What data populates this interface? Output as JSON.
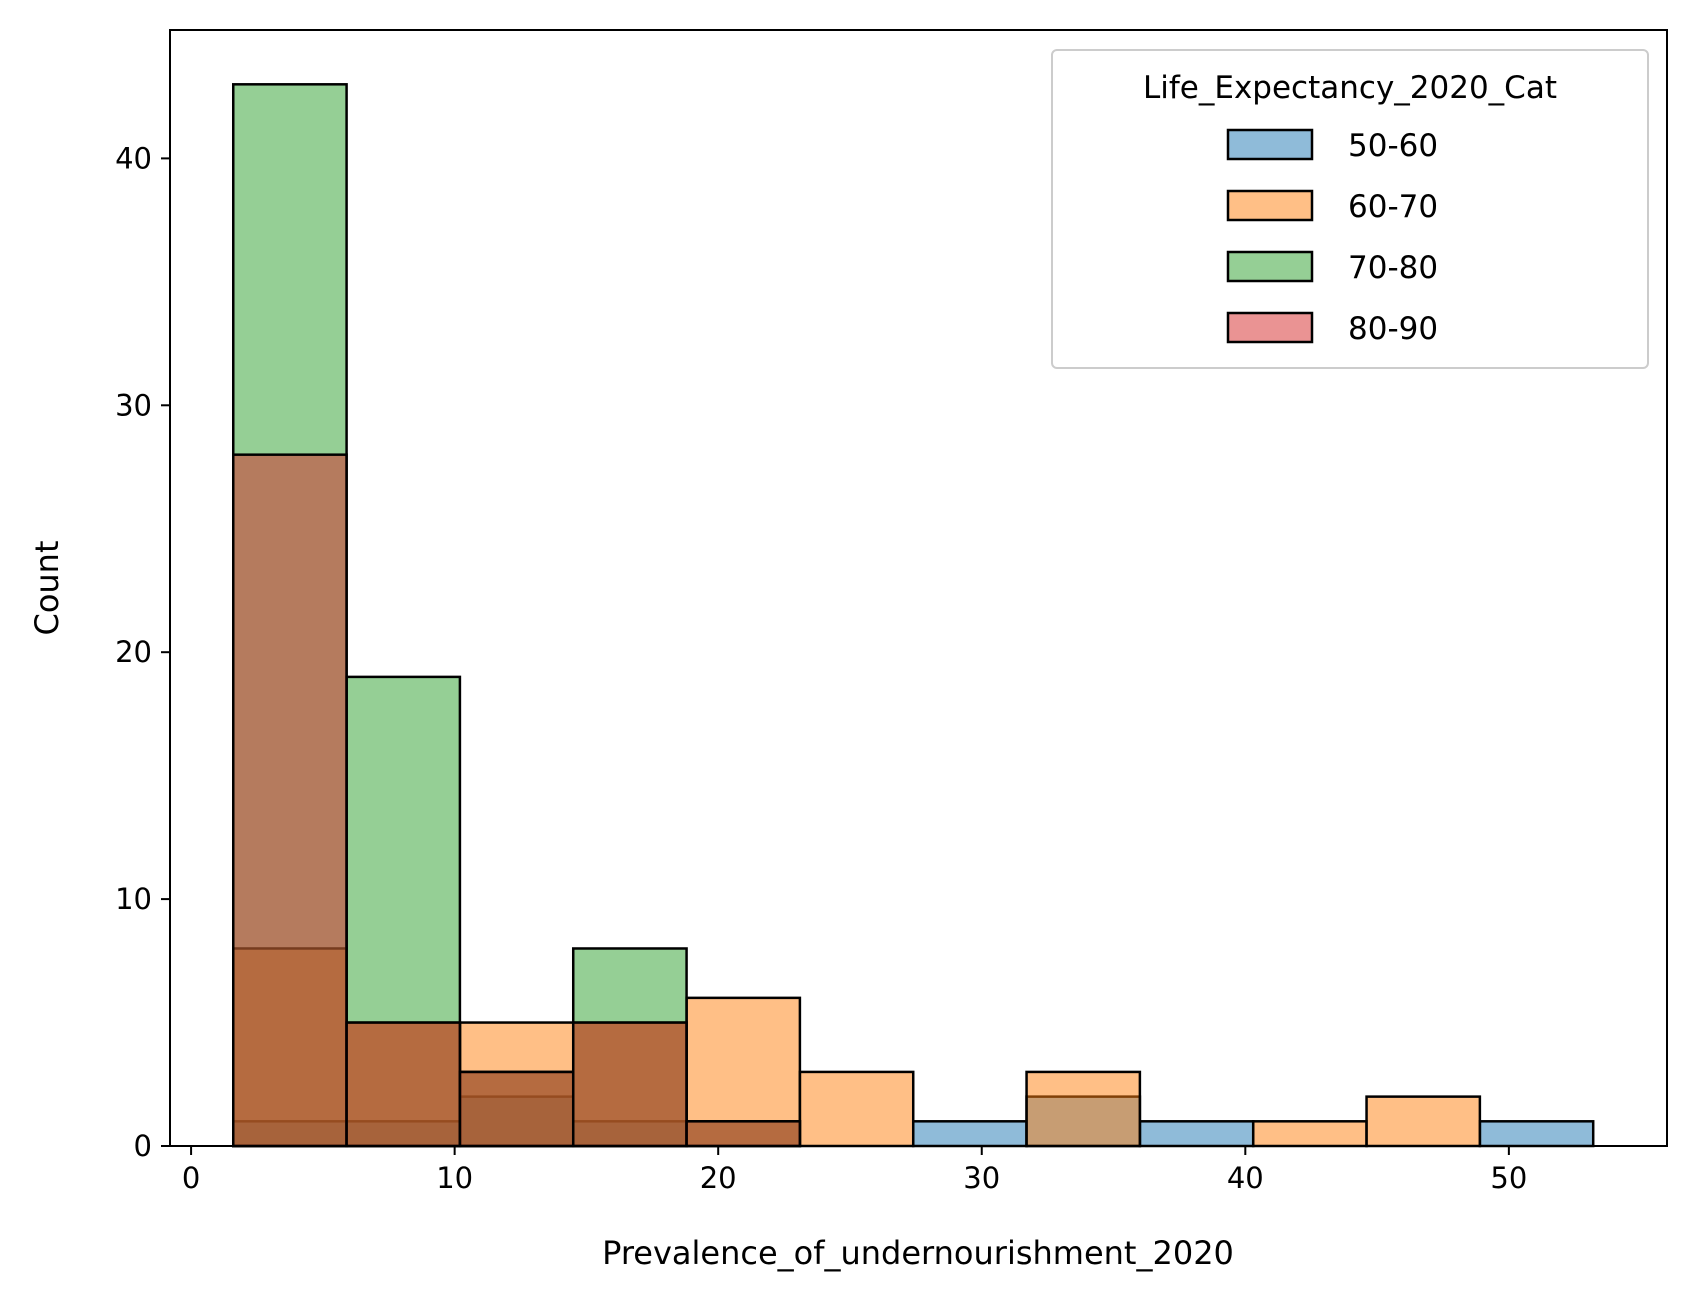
{
  "chart_data": {
    "type": "bar",
    "subtype": "overlapping-histogram",
    "title": "",
    "xlabel": "Prevalence_of_undernourishment_2020",
    "ylabel": "Count",
    "xlim": [
      -0.8,
      56.0
    ],
    "ylim": [
      0,
      45.2
    ],
    "xticks": [
      0,
      10,
      20,
      30,
      40,
      50
    ],
    "yticks": [
      0,
      10,
      20,
      30,
      40
    ],
    "grid": false,
    "legend": {
      "title": "Life_Expectancy_2020_Cat",
      "position": "top-right"
    },
    "bin_edges": [
      1.6,
      5.9,
      10.2,
      14.5,
      18.8,
      23.1,
      27.4,
      31.7,
      36.0,
      40.3,
      44.6,
      48.9,
      53.2
    ],
    "series": [
      {
        "name": "50-60",
        "color": "#1f77b4",
        "values": [
          1,
          1,
          2,
          1,
          0,
          0,
          1,
          2,
          1,
          0,
          0,
          1
        ]
      },
      {
        "name": "60-70",
        "color": "#ff7f0e",
        "values": [
          8,
          5,
          5,
          5,
          6,
          3,
          0,
          3,
          0,
          1,
          2,
          0
        ]
      },
      {
        "name": "70-80",
        "color": "#2ca02c",
        "values": [
          43,
          19,
          3,
          8,
          1,
          0,
          0,
          0,
          0,
          0,
          0,
          0
        ]
      },
      {
        "name": "80-90",
        "color": "#d62728",
        "values": [
          28,
          5,
          3,
          5,
          1,
          0,
          0,
          0,
          0,
          0,
          0,
          0
        ]
      }
    ]
  }
}
